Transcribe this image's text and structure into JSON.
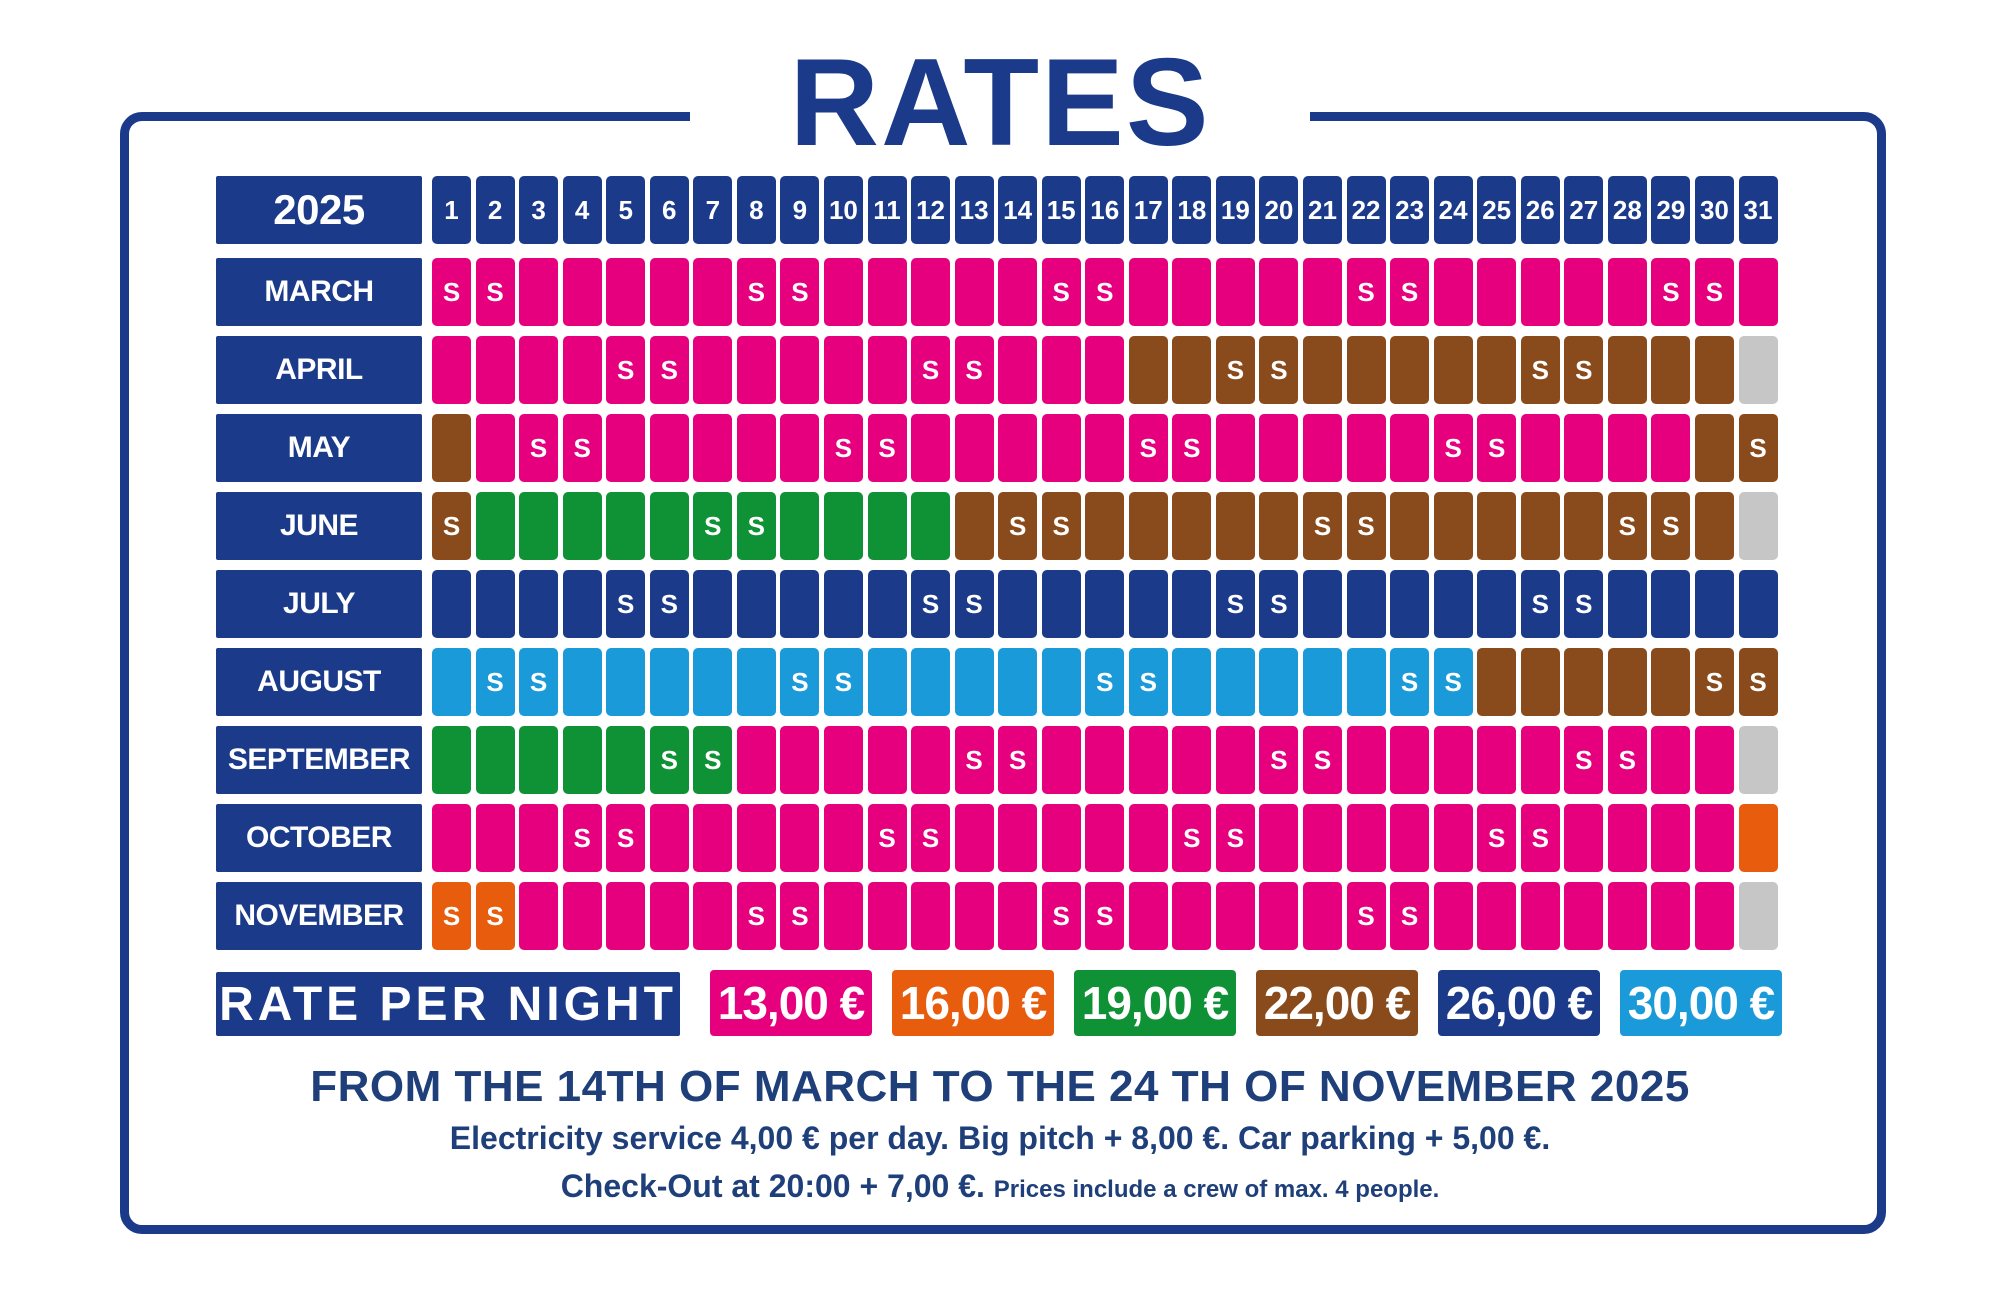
{
  "title": "RATES",
  "year": "2025",
  "days": [
    "1",
    "2",
    "3",
    "4",
    "5",
    "6",
    "7",
    "8",
    "9",
    "10",
    "11",
    "12",
    "13",
    "14",
    "15",
    "16",
    "17",
    "18",
    "19",
    "20",
    "21",
    "22",
    "23",
    "24",
    "25",
    "26",
    "27",
    "28",
    "29",
    "30",
    "31"
  ],
  "colors": {
    "P": "#e6007e",
    "O": "#e85c0d",
    "G": "#0f9135",
    "B": "#8a4b1c",
    "N": "#1b3a8a",
    "L": "#1b9ad9",
    "X": "#c6c6c6"
  },
  "rate_map": {
    "P": "13,00 €",
    "O": "16,00 €",
    "G": "19,00 €",
    "B": "22,00 €",
    "N": "26,00 €",
    "L": "30,00 €",
    "X": ""
  },
  "months": [
    {
      "name": "MARCH",
      "rates": "PPPPPPPPPPPPPPPPPPPPPPPPPPPPPPP",
      "sat": [
        1,
        2,
        8,
        9,
        15,
        16,
        22,
        23,
        29,
        30
      ]
    },
    {
      "name": "APRIL",
      "rates": "PPPPPPPPPPPPPPPPBBBBBBBBBBBBBBX",
      "sat": [
        5,
        6,
        12,
        13,
        19,
        20,
        26,
        27
      ]
    },
    {
      "name": "MAY",
      "rates": "BPPPPPPPPPPPPPPPPPPPPPPPPPPPPBB",
      "sat": [
        3,
        4,
        10,
        11,
        17,
        18,
        24,
        25,
        31
      ]
    },
    {
      "name": "JUNE",
      "rates": "BGGGGGGGGGGGBBBBBBBBBBBBBBBBBBX",
      "sat": [
        1,
        7,
        8,
        14,
        15,
        21,
        22,
        28,
        29
      ]
    },
    {
      "name": "JULY",
      "rates": "NNNNNNNNNNNNNNNNNNNNNNNNNNNNNNN",
      "sat": [
        5,
        6,
        12,
        13,
        19,
        20,
        26,
        27
      ]
    },
    {
      "name": "AUGUST",
      "rates": "LLLLLLLLLLLLLLLLLLLLLLLLBBBBBBB",
      "sat": [
        2,
        3,
        9,
        10,
        16,
        17,
        23,
        24,
        30,
        31
      ]
    },
    {
      "name": "SEPTEMBER",
      "rates": "GGGGGGGPPPPPPPPPPPPPPPPPPPPPPPX",
      "sat": [
        6,
        7,
        13,
        14,
        20,
        21,
        27,
        28
      ]
    },
    {
      "name": "OCTOBER",
      "rates": "PPPPPPPPPPPPPPPPPPPPPPPPPPPPPPO",
      "sat": [
        4,
        5,
        11,
        12,
        18,
        19,
        25,
        26
      ]
    },
    {
      "name": "NOVEMBER",
      "rates": "OOPPPPPPPPPPPPPPPPPPPPPPPPPPPPX",
      "sat": [
        1,
        2,
        8,
        9,
        15,
        16,
        22,
        23
      ]
    }
  ],
  "saturday_mark": "S",
  "legend": {
    "title": "RATE PER NIGHT",
    "items": [
      {
        "label": "13,00 €",
        "color": "#e6007e"
      },
      {
        "label": "16,00 €",
        "color": "#e85c0d"
      },
      {
        "label": "19,00 €",
        "color": "#0f9135"
      },
      {
        "label": "22,00 €",
        "color": "#8a4b1c"
      },
      {
        "label": "26,00 €",
        "color": "#1b3a8a"
      },
      {
        "label": "30,00 €",
        "color": "#1b9ad9"
      }
    ]
  },
  "footer": {
    "period": "FROM THE 14TH OF MARCH TO THE 24 TH OF NOVEMBER 2025",
    "services": "Electricity service 4,00 € per day. Big pitch + 8,00 €. Car parking + 5,00 €.",
    "checkout": "Check-Out at 20:00 + 7,00 €.",
    "crew": "Prices include a crew of max. 4 people."
  }
}
